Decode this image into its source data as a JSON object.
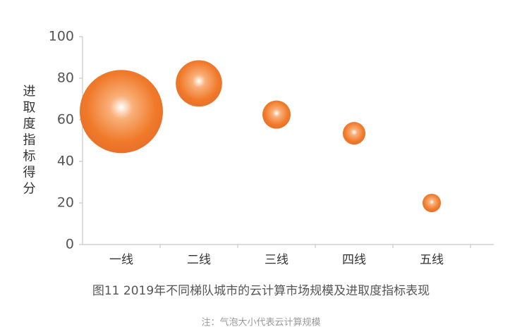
{
  "chart_data": {
    "type": "bubble",
    "categories": [
      "一线",
      "二线",
      "三线",
      "四线",
      "五线"
    ],
    "values": [
      64,
      77.5,
      62.5,
      53.5,
      20
    ],
    "sizes": [
      100,
      31,
      11.5,
      7.4,
      4.9
    ],
    "color": "#f07a2a",
    "ylim": [
      0,
      100
    ],
    "yticks": [
      0,
      20,
      40,
      60,
      80,
      100
    ],
    "ylabel": "进取度指标得分",
    "caption": "图11  2019年不同梯队城市的云计算市场规模及进取度指标表现",
    "note": "注：气泡大小代表云计算规模",
    "grid": false
  }
}
